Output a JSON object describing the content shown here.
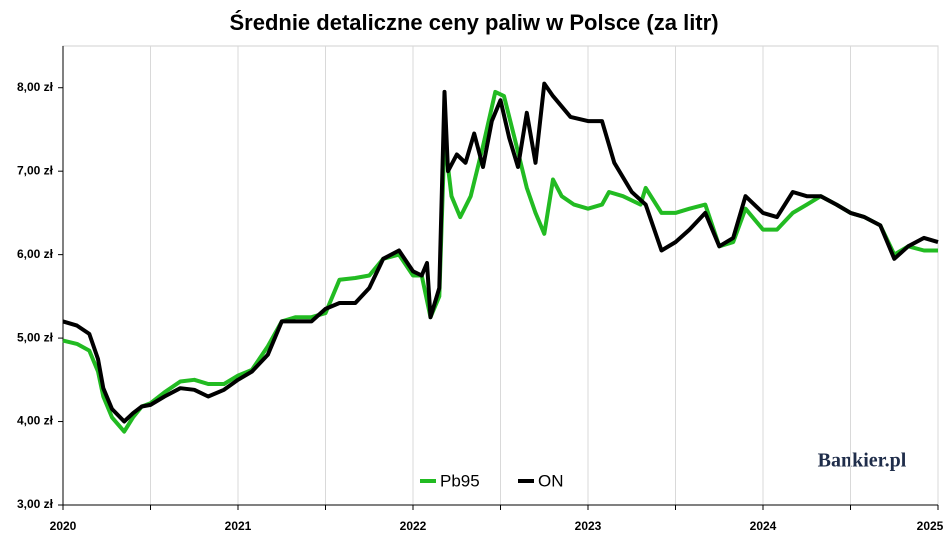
{
  "chart_data": {
    "type": "line",
    "title": "Średnie detaliczne ceny paliw w Polsce (za litr)",
    "watermark": "Bankier.pl",
    "xlim": [
      2020,
      2025
    ],
    "xticks": [
      2020,
      {
        "value": 2020.5,
        "label": null
      },
      2021,
      {
        "value": 2021.5,
        "label": null
      },
      2022,
      {
        "value": 2022.5,
        "label": null
      },
      2023,
      {
        "value": 2023.5,
        "label": null
      },
      2024,
      {
        "value": 2024.5,
        "label": null
      },
      2025
    ],
    "ylim": [
      3,
      8.5
    ],
    "yticks": [
      {
        "value": 3,
        "label": "3,00 zł"
      },
      {
        "value": 4,
        "label": "4,00 zł"
      },
      {
        "value": 5,
        "label": "5,00 zł"
      },
      {
        "value": 6,
        "label": "6,00 zł"
      },
      {
        "value": 7,
        "label": "7,00 zł"
      },
      {
        "value": 8,
        "label": "8,00 zł"
      }
    ],
    "grid": "x",
    "legend": "bottom",
    "series": [
      {
        "name": "Pb95",
        "color": "#22bb22",
        "x": [
          2020.0,
          2020.08,
          2020.15,
          2020.2,
          2020.23,
          2020.28,
          2020.35,
          2020.4,
          2020.45,
          2020.5,
          2020.58,
          2020.67,
          2020.75,
          2020.83,
          2020.92,
          2021.0,
          2021.08,
          2021.17,
          2021.25,
          2021.33,
          2021.42,
          2021.5,
          2021.58,
          2021.67,
          2021.75,
          2021.83,
          2021.92,
          2022.0,
          2022.05,
          2022.1,
          2022.15,
          2022.18,
          2022.22,
          2022.27,
          2022.33,
          2022.4,
          2022.47,
          2022.52,
          2022.58,
          2022.65,
          2022.7,
          2022.75,
          2022.8,
          2022.85,
          2022.92,
          2023.0,
          2023.08,
          2023.12,
          2023.2,
          2023.3,
          2023.33,
          2023.42,
          2023.5,
          2023.58,
          2023.67,
          2023.75,
          2023.83,
          2023.9,
          2024.0,
          2024.08,
          2024.17,
          2024.25,
          2024.33,
          2024.42,
          2024.5,
          2024.58,
          2024.67,
          2024.75,
          2024.83,
          2024.92,
          2025.0
        ],
        "values": [
          4.97,
          4.93,
          4.85,
          4.6,
          4.3,
          4.05,
          3.88,
          4.05,
          4.18,
          4.22,
          4.35,
          4.48,
          4.5,
          4.45,
          4.45,
          4.55,
          4.62,
          4.9,
          5.2,
          5.25,
          5.25,
          5.3,
          5.7,
          5.72,
          5.75,
          5.95,
          6.0,
          5.75,
          5.75,
          5.25,
          5.5,
          7.4,
          6.7,
          6.45,
          6.7,
          7.3,
          7.95,
          7.9,
          7.4,
          6.8,
          6.5,
          6.25,
          6.9,
          6.7,
          6.6,
          6.55,
          6.6,
          6.75,
          6.7,
          6.6,
          6.8,
          6.5,
          6.5,
          6.55,
          6.6,
          6.1,
          6.15,
          6.55,
          6.3,
          6.3,
          6.5,
          6.6,
          6.7,
          6.6,
          6.5,
          6.45,
          6.35,
          6.0,
          6.1,
          6.05,
          6.05
        ]
      },
      {
        "name": "ON",
        "color": "#000000",
        "x": [
          2020.0,
          2020.08,
          2020.15,
          2020.2,
          2020.23,
          2020.28,
          2020.35,
          2020.4,
          2020.45,
          2020.5,
          2020.58,
          2020.67,
          2020.75,
          2020.83,
          2020.92,
          2021.0,
          2021.08,
          2021.17,
          2021.25,
          2021.33,
          2021.42,
          2021.5,
          2021.58,
          2021.67,
          2021.75,
          2021.83,
          2021.92,
          2022.0,
          2022.05,
          2022.08,
          2022.1,
          2022.15,
          2022.18,
          2022.2,
          2022.25,
          2022.3,
          2022.35,
          2022.4,
          2022.45,
          2022.5,
          2022.55,
          2022.6,
          2022.65,
          2022.7,
          2022.75,
          2022.8,
          2022.9,
          2023.0,
          2023.08,
          2023.15,
          2023.25,
          2023.33,
          2023.42,
          2023.5,
          2023.58,
          2023.67,
          2023.75,
          2023.83,
          2023.9,
          2024.0,
          2024.08,
          2024.17,
          2024.25,
          2024.33,
          2024.42,
          2024.5,
          2024.58,
          2024.67,
          2024.75,
          2024.83,
          2024.92,
          2025.0
        ],
        "values": [
          5.2,
          5.15,
          5.05,
          4.75,
          4.4,
          4.15,
          4.0,
          4.1,
          4.18,
          4.2,
          4.3,
          4.4,
          4.38,
          4.3,
          4.38,
          4.5,
          4.6,
          4.8,
          5.2,
          5.2,
          5.2,
          5.35,
          5.42,
          5.42,
          5.6,
          5.95,
          6.05,
          5.8,
          5.75,
          5.9,
          5.25,
          5.6,
          7.95,
          7.0,
          7.2,
          7.1,
          7.45,
          7.05,
          7.6,
          7.85,
          7.4,
          7.05,
          7.7,
          7.1,
          8.05,
          7.9,
          7.65,
          7.6,
          7.6,
          7.1,
          6.75,
          6.6,
          6.05,
          6.15,
          6.3,
          6.5,
          6.1,
          6.2,
          6.7,
          6.5,
          6.45,
          6.75,
          6.7,
          6.7,
          6.6,
          6.5,
          6.45,
          6.35,
          5.95,
          6.1,
          6.2,
          6.15
        ]
      }
    ]
  }
}
